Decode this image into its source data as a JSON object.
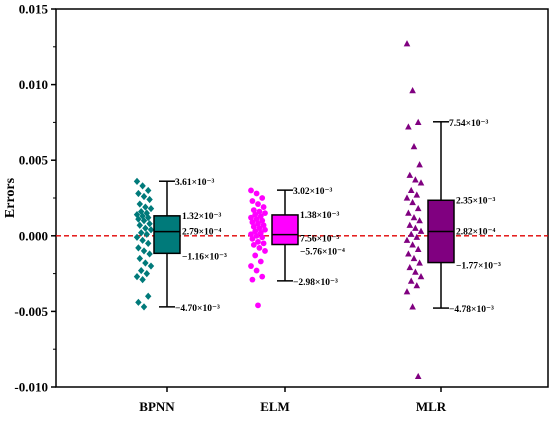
{
  "chart_data": {
    "type": "box",
    "ylabel": "Errors",
    "xlabel": "",
    "ylim": [
      -0.01,
      0.015
    ],
    "yticks": [
      "-0.010",
      "-0.005",
      "0.000",
      "0.005",
      "0.010",
      "0.015"
    ],
    "reference_line": {
      "y": 0,
      "color": "#e00000",
      "style": "dashed"
    },
    "grid": false,
    "categories": [
      "BPNN",
      "ELM",
      "MLR"
    ],
    "series": [
      {
        "name": "BPNN",
        "color": "#007a7a",
        "marker": "diamond",
        "whisker_high": 0.00361,
        "q3": 0.00132,
        "median": 0.000279,
        "q1": -0.00116,
        "whisker_low": -0.0047,
        "labels": {
          "whisker_high": "3.61×10⁻³",
          "q3": "1.32×10⁻³",
          "median": "2.79×10⁻⁴",
          "q1": "−1.16×10⁻³",
          "whisker_low": "−4.70×10⁻³"
        },
        "points": [
          0.0036,
          0.0033,
          0.003,
          0.0028,
          0.0026,
          0.0024,
          0.0021,
          0.0019,
          0.0018,
          0.0016,
          0.0015,
          0.0014,
          0.0013,
          0.0012,
          0.0011,
          0.001,
          0.0008,
          0.0007,
          0.0005,
          0.0004,
          0.0002,
          0.0001,
          -0.0001,
          -0.0003,
          -0.0005,
          -0.0008,
          -0.001,
          -0.0012,
          -0.0015,
          -0.0018,
          -0.002,
          -0.0023,
          -0.0025,
          -0.0027,
          -0.0029,
          -0.004,
          -0.0044,
          -0.0047
        ]
      },
      {
        "name": "ELM",
        "color": "#ff00ff",
        "marker": "circle",
        "whisker_high": 0.00302,
        "q3": 0.00138,
        "median": 7.56e-05,
        "q1": -0.000576,
        "whisker_low": -0.00298,
        "labels": {
          "whisker_high": "3.02×10⁻³",
          "q3": "1.38×10⁻³",
          "median": "7.56×10⁻⁵",
          "q1": "−5.76×10⁻⁴",
          "whisker_low": "−2.98×10⁻³"
        },
        "points": [
          0.003,
          0.0028,
          0.0025,
          0.0023,
          0.0021,
          0.0019,
          0.0017,
          0.0016,
          0.0015,
          0.0014,
          0.0013,
          0.0012,
          0.0011,
          0.001,
          0.0009,
          0.0008,
          0.0007,
          0.0006,
          0.0005,
          0.0004,
          0.0003,
          0.0002,
          0.0001,
          0.0,
          -0.0001,
          -0.0002,
          -0.0004,
          -0.0005,
          -0.0006,
          -0.0008,
          -0.001,
          -0.0013,
          -0.0017,
          -0.002,
          -0.0023,
          -0.0027,
          -0.0029,
          -0.0046
        ]
      },
      {
        "name": "MLR",
        "color": "#800080",
        "marker": "triangle",
        "whisker_high": 0.00754,
        "q3": 0.00235,
        "median": 0.000282,
        "q1": -0.00177,
        "whisker_low": -0.00478,
        "labels": {
          "whisker_high": "7.54×10⁻³",
          "q3": "2.35×10⁻³",
          "median": "2.82×10⁻⁴",
          "q1": "−1.77×10⁻³",
          "whisker_low": "−4.78×10⁻³"
        },
        "points": [
          0.0127,
          0.0096,
          0.0075,
          0.0072,
          0.0059,
          0.0047,
          0.004,
          0.0037,
          0.0035,
          0.003,
          0.0027,
          0.0025,
          0.0022,
          0.0018,
          0.0015,
          0.0012,
          0.001,
          0.0007,
          0.0005,
          0.0003,
          0.0001,
          -0.0001,
          -0.0003,
          -0.0006,
          -0.0009,
          -0.0012,
          -0.0015,
          -0.0018,
          -0.0021,
          -0.0024,
          -0.0027,
          -0.003,
          -0.0033,
          -0.0037,
          -0.0047,
          -0.0093
        ]
      }
    ]
  }
}
